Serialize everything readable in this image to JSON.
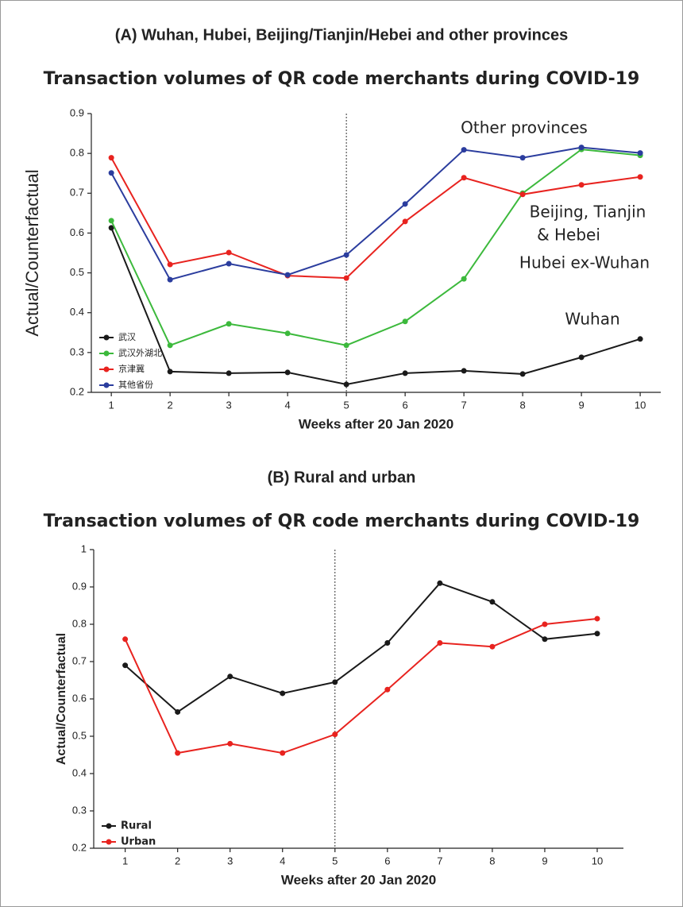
{
  "chart_data": [
    {
      "type": "line",
      "heading": "(A) Wuhan, Hubei, Beijing/Tianjin/Hebei and other provinces",
      "title": "Transaction volumes of QR code merchants during COVID-19",
      "x_label": "Weeks after 20 Jan 2020",
      "y_label": "Actual/Counterfactual",
      "x": [
        1,
        2,
        3,
        4,
        5,
        6,
        7,
        8,
        9,
        10
      ],
      "xlim": [
        0.66,
        10.35
      ],
      "xticks": [
        1,
        2,
        3,
        4,
        5,
        6,
        7,
        8,
        9,
        10
      ],
      "ylim": [
        0.2,
        0.9
      ],
      "yticks": [
        0.2,
        0.3,
        0.4,
        0.5,
        0.6,
        0.7,
        0.8,
        0.9
      ],
      "vline": 5,
      "legend": "lower left",
      "series": [
        {
          "name": "武汉",
          "color": "#1a1a1a",
          "values": [
            0.613,
            0.252,
            0.248,
            0.25,
            0.22,
            0.248,
            0.254,
            0.246,
            0.288,
            0.334
          ]
        },
        {
          "name": "武汉外湖北",
          "color": "#3cb93c",
          "values": [
            0.631,
            0.318,
            0.372,
            0.348,
            0.318,
            0.378,
            0.485,
            0.7,
            0.81,
            0.795
          ]
        },
        {
          "name": "京津冀",
          "color": "#e8231f",
          "values": [
            0.789,
            0.521,
            0.551,
            0.493,
            0.487,
            0.629,
            0.739,
            0.697,
            0.721,
            0.741
          ]
        },
        {
          "name": "其他省份",
          "color": "#2b3d9e",
          "values": [
            0.751,
            0.483,
            0.523,
            0.495,
            0.545,
            0.673,
            0.809,
            0.789,
            0.815,
            0.801
          ]
        }
      ],
      "annotations": [
        "Other provinces",
        "Beijing, Tianjin",
        "& Hebei",
        "Hubei ex-Wuhan",
        "Wuhan"
      ]
    },
    {
      "type": "line",
      "heading": "(B) Rural and urban",
      "title": "Transaction volumes of QR code merchants during COVID-19",
      "x_label": "Weeks after 20 Jan 2020",
      "y_label": "Actual/Counterfactual",
      "x": [
        1,
        2,
        3,
        4,
        5,
        6,
        7,
        8,
        9,
        10
      ],
      "xlim": [
        0.4,
        10.5
      ],
      "xticks": [
        1,
        2,
        3,
        4,
        5,
        6,
        7,
        8,
        9,
        10
      ],
      "ylim": [
        0.2,
        1
      ],
      "yticks": [
        0.2,
        0.3,
        0.4,
        0.5,
        0.6,
        0.7,
        0.8,
        0.9,
        1
      ],
      "vline": 5,
      "legend": "lower left",
      "series": [
        {
          "name": "Rural",
          "color": "#1a1a1a",
          "values": [
            0.69,
            0.565,
            0.66,
            0.615,
            0.645,
            0.75,
            0.91,
            0.86,
            0.76,
            0.775
          ]
        },
        {
          "name": "Urban",
          "color": "#e8231f",
          "values": [
            0.76,
            0.455,
            0.48,
            0.455,
            0.505,
            0.625,
            0.75,
            0.74,
            0.8,
            0.815
          ]
        }
      ]
    }
  ]
}
